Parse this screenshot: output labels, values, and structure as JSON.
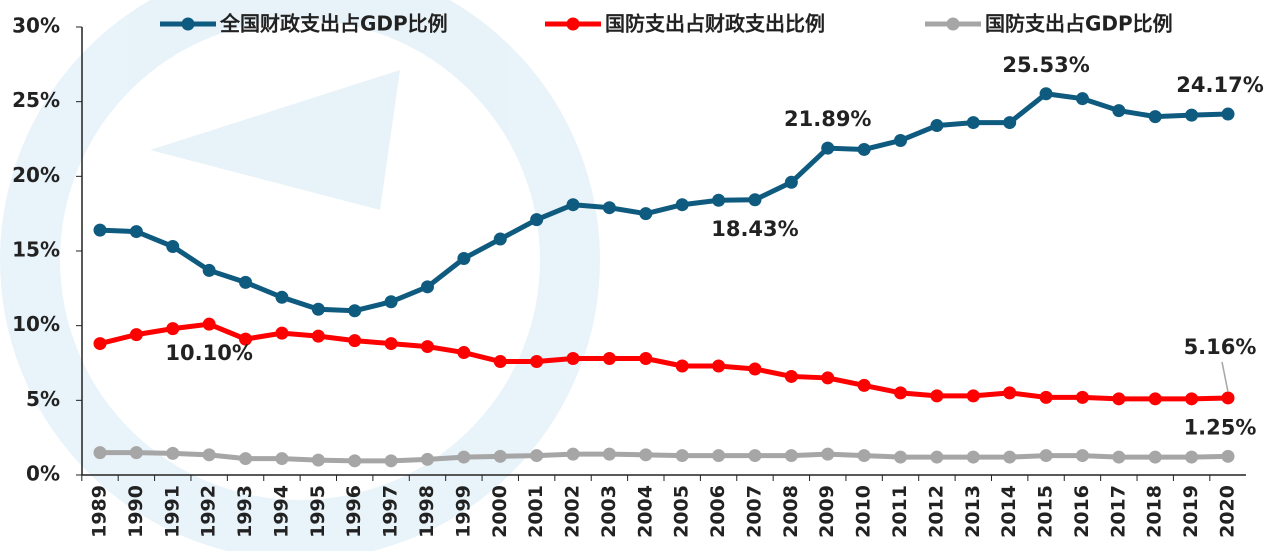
{
  "chart_data": {
    "type": "line",
    "categories": [
      "1989",
      "1990",
      "1991",
      "1992",
      "1993",
      "1994",
      "1995",
      "1996",
      "1997",
      "1998",
      "1999",
      "2000",
      "2001",
      "2002",
      "2003",
      "2004",
      "2005",
      "2006",
      "2007",
      "2008",
      "2009",
      "2010",
      "2011",
      "2012",
      "2013",
      "2014",
      "2015",
      "2016",
      "2017",
      "2018",
      "2019",
      "2020"
    ],
    "series": [
      {
        "name": "全国财政支出占GDP比例",
        "color": "#0f5a7f",
        "values": [
          16.4,
          16.3,
          15.3,
          13.7,
          12.9,
          11.9,
          11.1,
          11.0,
          11.6,
          12.6,
          14.5,
          15.8,
          17.1,
          18.1,
          17.9,
          17.5,
          18.1,
          18.4,
          18.43,
          19.6,
          21.89,
          21.8,
          22.4,
          23.4,
          23.6,
          23.6,
          25.53,
          25.2,
          24.4,
          24.0,
          24.1,
          24.17
        ],
        "value_labels": [
          null,
          null,
          null,
          null,
          null,
          null,
          null,
          null,
          null,
          null,
          null,
          null,
          null,
          null,
          null,
          null,
          null,
          null,
          "18.43%",
          null,
          "21.89%",
          null,
          null,
          null,
          null,
          null,
          "25.53%",
          null,
          null,
          null,
          null,
          "24.17%"
        ]
      },
      {
        "name": "国防支出占财政支出比例",
        "color": "#ff0000",
        "values": [
          8.8,
          9.4,
          9.8,
          10.1,
          9.1,
          9.5,
          9.3,
          9.0,
          8.8,
          8.6,
          8.2,
          7.6,
          7.6,
          7.8,
          7.8,
          7.8,
          7.3,
          7.3,
          7.1,
          6.6,
          6.5,
          6.0,
          5.5,
          5.3,
          5.3,
          5.5,
          5.2,
          5.2,
          5.1,
          5.1,
          5.1,
          5.16
        ],
        "value_labels": [
          null,
          null,
          null,
          "10.10%",
          null,
          null,
          null,
          null,
          null,
          null,
          null,
          null,
          null,
          null,
          null,
          null,
          null,
          null,
          null,
          null,
          null,
          null,
          null,
          null,
          null,
          null,
          null,
          null,
          null,
          null,
          null,
          "5.16%"
        ]
      },
      {
        "name": "国防支出占GDP比例",
        "color": "#a6a6a6",
        "values": [
          1.5,
          1.5,
          1.45,
          1.35,
          1.1,
          1.1,
          1.0,
          0.95,
          0.95,
          1.05,
          1.2,
          1.25,
          1.3,
          1.4,
          1.4,
          1.35,
          1.3,
          1.3,
          1.3,
          1.3,
          1.4,
          1.3,
          1.2,
          1.2,
          1.2,
          1.2,
          1.3,
          1.3,
          1.2,
          1.2,
          1.2,
          1.25
        ],
        "value_labels": [
          null,
          null,
          null,
          null,
          null,
          null,
          null,
          null,
          null,
          null,
          null,
          null,
          null,
          null,
          null,
          null,
          null,
          null,
          null,
          null,
          null,
          null,
          null,
          null,
          null,
          null,
          null,
          null,
          null,
          null,
          null,
          "1.25%"
        ]
      }
    ],
    "ylim": [
      0,
      30
    ],
    "yticks": [
      {
        "value": 0,
        "label": "0%"
      },
      {
        "value": 5,
        "label": "5%"
      },
      {
        "value": 10,
        "label": "10%"
      },
      {
        "value": 15,
        "label": "15%"
      },
      {
        "value": 20,
        "label": "20%"
      },
      {
        "value": 25,
        "label": "25%"
      },
      {
        "value": 30,
        "label": "30%"
      }
    ],
    "grid": false,
    "legend": "top"
  }
}
